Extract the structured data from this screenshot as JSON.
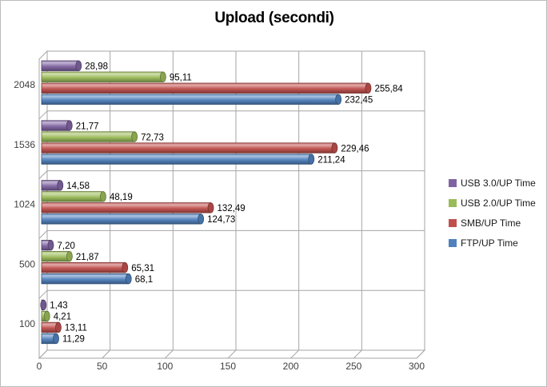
{
  "chart_data": {
    "type": "bar",
    "orientation": "horizontal",
    "style": "3d-cylinder",
    "title": "Upload (secondi)",
    "categories": [
      "2048",
      "1536",
      "1024",
      "500",
      "100"
    ],
    "series": [
      {
        "name": "USB 3.0/UP Time",
        "color": "#8064A2",
        "values": [
          28.98,
          21.77,
          14.58,
          7.2,
          1.43
        ],
        "labels": [
          "28,98",
          "21,77",
          "14,58",
          "7,20",
          "1,43"
        ]
      },
      {
        "name": "USB 2.0/UP Time",
        "color": "#9BBB59",
        "values": [
          95.11,
          72.73,
          48.19,
          21.87,
          4.21
        ],
        "labels": [
          "95,11",
          "72,73",
          "48,19",
          "21,87",
          "4,21"
        ]
      },
      {
        "name": "SMB/UP Time",
        "color": "#C0504D",
        "values": [
          255.84,
          229.46,
          132.49,
          65.31,
          13.11
        ],
        "labels": [
          "255,84",
          "229,46",
          "132,49",
          "65,31",
          "13,11"
        ]
      },
      {
        "name": "FTP/UP Time",
        "color": "#4F81BD",
        "values": [
          232.45,
          211.24,
          124.73,
          68.1,
          11.29
        ],
        "labels": [
          "232,45",
          "211,24",
          "124,73",
          "68,1",
          "11,29"
        ]
      }
    ],
    "xlim": [
      0,
      300
    ],
    "x_ticks": [
      0,
      50,
      100,
      150,
      200,
      250,
      300
    ],
    "x_tick_labels": [
      "0",
      "50",
      "100",
      "150",
      "200",
      "250",
      "300"
    ],
    "legend_position": "right",
    "grid": true,
    "colors": {
      "gridline": "#A6A6A6",
      "wall_fill": "#FFFFFF",
      "axis_text": "#404040",
      "data_label_text": "#000000"
    }
  }
}
